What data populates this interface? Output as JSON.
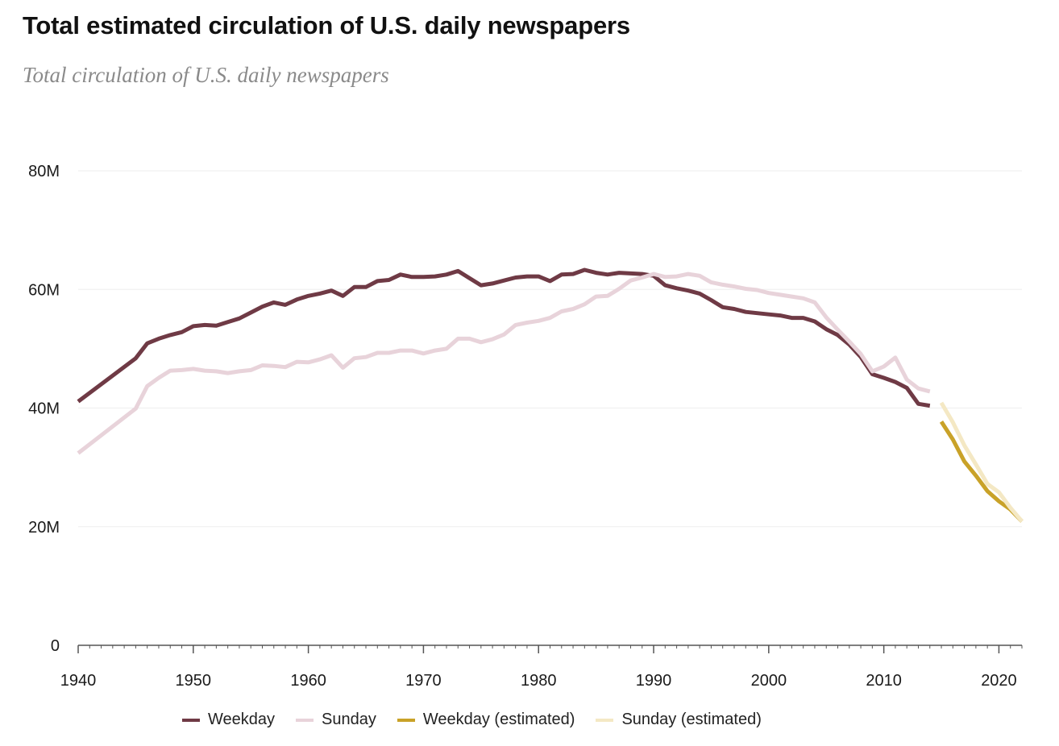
{
  "title": "Total estimated circulation of U.S. daily newspapers",
  "subtitle": "Total circulation of U.S. daily newspapers",
  "colors": {
    "weekday": "#6f3a45",
    "sunday": "#e8d3da",
    "weekday_estimated": "#c9a228",
    "sunday_estimated": "#f4e8c4",
    "grid": "#eeeeee",
    "axis": "#555555"
  },
  "legend": [
    {
      "label": "Weekday",
      "color": "#6f3a45"
    },
    {
      "label": "Sunday",
      "color": "#e8d3da"
    },
    {
      "label": "Weekday (estimated)",
      "color": "#c9a228"
    },
    {
      "label": "Sunday (estimated)",
      "color": "#f4e8c4"
    }
  ],
  "chart_data": {
    "type": "line",
    "title": "Total estimated circulation of U.S. daily newspapers",
    "subtitle": "Total circulation of U.S. daily newspapers",
    "xlim": [
      1940,
      2022
    ],
    "ylim": [
      0,
      80000000
    ],
    "x_ticks": [
      1940,
      1950,
      1960,
      1970,
      1980,
      1990,
      2000,
      2010,
      2020
    ],
    "y_ticks": [
      {
        "value": 0,
        "label": "0"
      },
      {
        "value": 20000000,
        "label": "20M"
      },
      {
        "value": 40000000,
        "label": "40M"
      },
      {
        "value": 60000000,
        "label": "60M"
      },
      {
        "value": 80000000,
        "label": "80M"
      }
    ],
    "grid": true,
    "legend_position": "bottom",
    "series": [
      {
        "name": "Weekday",
        "color": "#6f3a45",
        "x": [
          1940,
          1945,
          1946,
          1947,
          1948,
          1949,
          1950,
          1951,
          1952,
          1953,
          1954,
          1955,
          1956,
          1957,
          1958,
          1959,
          1960,
          1961,
          1962,
          1963,
          1964,
          1965,
          1966,
          1967,
          1968,
          1969,
          1970,
          1971,
          1972,
          1973,
          1974,
          1975,
          1976,
          1977,
          1978,
          1979,
          1980,
          1981,
          1982,
          1983,
          1984,
          1985,
          1986,
          1987,
          1988,
          1989,
          1990,
          1991,
          1992,
          1993,
          1994,
          1995,
          1996,
          1997,
          1998,
          1999,
          2000,
          2001,
          2002,
          2003,
          2004,
          2005,
          2006,
          2007,
          2008,
          2009,
          2010,
          2011,
          2012,
          2013,
          2014
        ],
        "y": [
          41100000,
          48400000,
          50900000,
          51700000,
          52300000,
          52800000,
          53800000,
          54000000,
          53900000,
          54500000,
          55100000,
          56100000,
          57100000,
          57800000,
          57400000,
          58300000,
          58900000,
          59300000,
          59800000,
          58900000,
          60400000,
          60400000,
          61400000,
          61600000,
          62500000,
          62100000,
          62100000,
          62200000,
          62500000,
          63100000,
          61900000,
          60700000,
          61000000,
          61500000,
          62000000,
          62200000,
          62200000,
          61400000,
          62500000,
          62600000,
          63300000,
          62800000,
          62500000,
          62800000,
          62700000,
          62600000,
          62300000,
          60700000,
          60200000,
          59800000,
          59300000,
          58200000,
          57000000,
          56700000,
          56200000,
          56000000,
          55800000,
          55600000,
          55200000,
          55200000,
          54600000,
          53300000,
          52300000,
          50700000,
          48600000,
          45700000,
          45100000,
          44400000,
          43400000,
          40700000,
          40400000
        ]
      },
      {
        "name": "Sunday",
        "color": "#e8d3da",
        "x": [
          1940,
          1945,
          1946,
          1947,
          1948,
          1949,
          1950,
          1951,
          1952,
          1953,
          1954,
          1955,
          1956,
          1957,
          1958,
          1959,
          1960,
          1961,
          1962,
          1963,
          1964,
          1965,
          1966,
          1967,
          1968,
          1969,
          1970,
          1971,
          1972,
          1973,
          1974,
          1975,
          1976,
          1977,
          1978,
          1979,
          1980,
          1981,
          1982,
          1983,
          1984,
          1985,
          1986,
          1987,
          1988,
          1989,
          1990,
          1991,
          1992,
          1993,
          1994,
          1995,
          1996,
          1997,
          1998,
          1999,
          2000,
          2001,
          2002,
          2003,
          2004,
          2005,
          2006,
          2007,
          2008,
          2009,
          2010,
          2011,
          2012,
          2013,
          2014
        ],
        "y": [
          32400000,
          39900000,
          43700000,
          45100000,
          46300000,
          46400000,
          46600000,
          46300000,
          46200000,
          45900000,
          46200000,
          46400000,
          47200000,
          47100000,
          46900000,
          47800000,
          47700000,
          48200000,
          48900000,
          46800000,
          48400000,
          48600000,
          49300000,
          49300000,
          49700000,
          49700000,
          49200000,
          49700000,
          50000000,
          51700000,
          51700000,
          51100000,
          51600000,
          52400000,
          54000000,
          54400000,
          54700000,
          55200000,
          56300000,
          56700000,
          57500000,
          58800000,
          58900000,
          60100000,
          61500000,
          62000000,
          62600000,
          62100000,
          62200000,
          62600000,
          62300000,
          61200000,
          60800000,
          60500000,
          60100000,
          59900000,
          59400000,
          59100000,
          58800000,
          58500000,
          57800000,
          55300000,
          53200000,
          51200000,
          49100000,
          46200000,
          47000000,
          48500000,
          44800000,
          43300000,
          42800000
        ]
      },
      {
        "name": "Weekday (estimated)",
        "color": "#c9a228",
        "x": [
          2015,
          2016,
          2017,
          2018,
          2019,
          2020,
          2021,
          2022
        ],
        "y": [
          37700000,
          34700000,
          31000000,
          28600000,
          26000000,
          24300000,
          22900000,
          20900000
        ]
      },
      {
        "name": "Sunday (estimated)",
        "color": "#f4e8c4",
        "x": [
          2015,
          2016,
          2017,
          2018,
          2019,
          2020,
          2021,
          2022
        ],
        "y": [
          40900000,
          37600000,
          33700000,
          30500000,
          27200000,
          25800000,
          23200000,
          20900000
        ]
      }
    ]
  }
}
